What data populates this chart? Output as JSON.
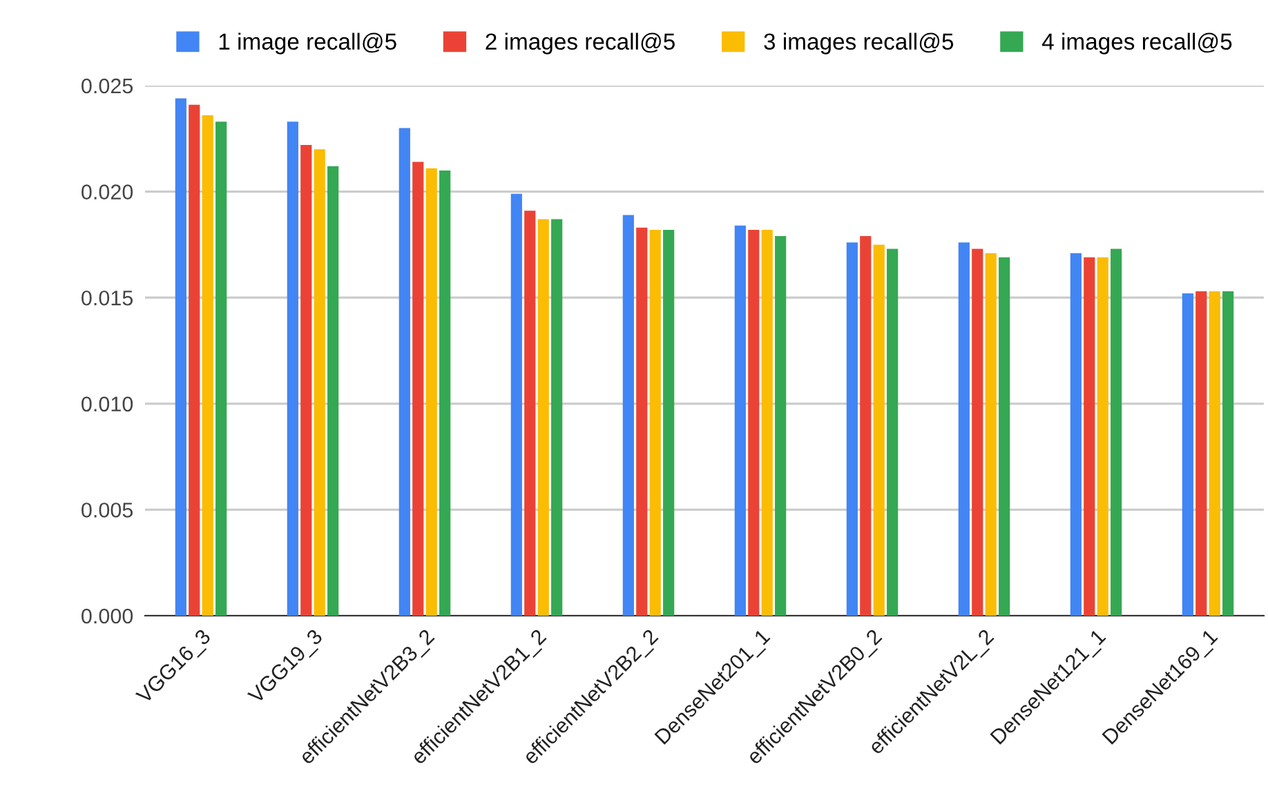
{
  "chart_data": {
    "type": "bar",
    "categories": [
      "VGG16_3",
      "VGG19_3",
      "efficientNetV2B3_2",
      "efficientNetV2B1_2",
      "efficientNetV2B2_2",
      "DenseNet201_1",
      "efficientNetV2B0_2",
      "efficientNetV2L_2",
      "DenseNet121_1",
      "DenseNet169_1"
    ],
    "series": [
      {
        "name": "1 image recall@5",
        "color": "#4285f4",
        "values": [
          0.0244,
          0.0233,
          0.023,
          0.0199,
          0.0189,
          0.0184,
          0.0176,
          0.0176,
          0.0171,
          0.0152
        ]
      },
      {
        "name": "2 images recall@5",
        "color": "#ea4335",
        "values": [
          0.0241,
          0.0222,
          0.0214,
          0.0191,
          0.0183,
          0.0182,
          0.0179,
          0.0173,
          0.0169,
          0.0153
        ]
      },
      {
        "name": "3 images recall@5",
        "color": "#fbbc04",
        "values": [
          0.0236,
          0.022,
          0.0211,
          0.0187,
          0.0182,
          0.0182,
          0.0175,
          0.0171,
          0.0169,
          0.0153
        ]
      },
      {
        "name": "4 images recall@5",
        "color": "#34a853",
        "values": [
          0.0233,
          0.0212,
          0.021,
          0.0187,
          0.0182,
          0.0179,
          0.0173,
          0.0169,
          0.0173,
          0.0153
        ]
      }
    ],
    "ylim": [
      0,
      0.025
    ],
    "yticks": [
      {
        "value": 0,
        "label": "0.000"
      },
      {
        "value": 0.005,
        "label": "0.005"
      },
      {
        "value": 0.01,
        "label": "0.010"
      },
      {
        "value": 0.015,
        "label": "0.015"
      },
      {
        "value": 0.02,
        "label": "0.020"
      },
      {
        "value": 0.025,
        "label": "0.025"
      }
    ],
    "grid": "y",
    "legend": "top"
  }
}
